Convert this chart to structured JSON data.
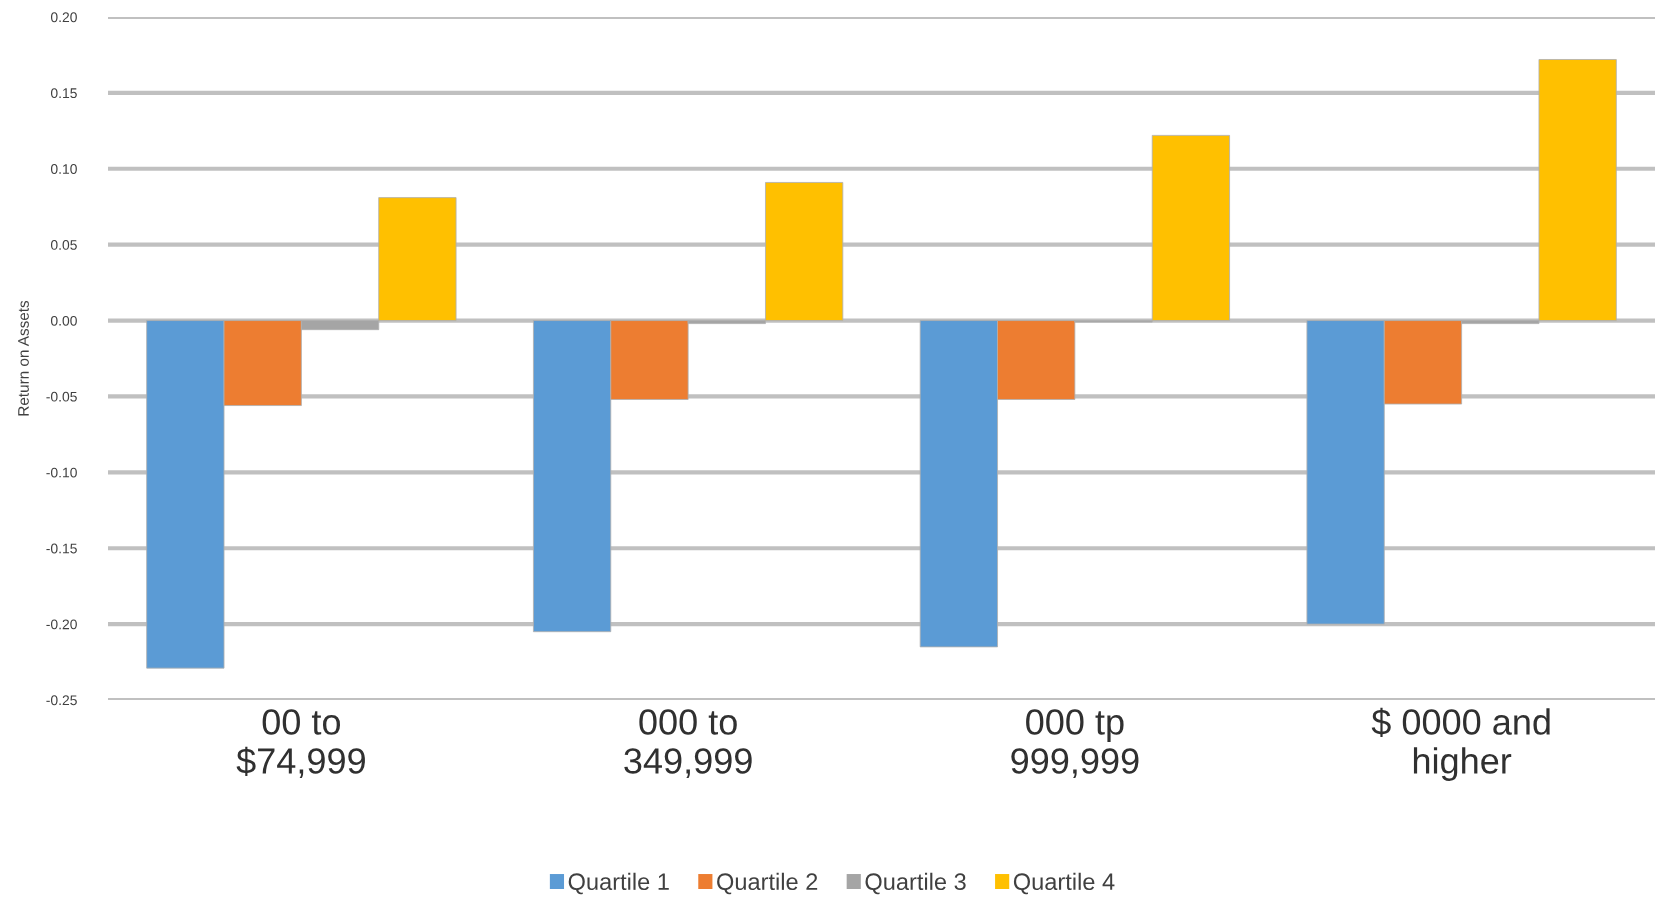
{
  "chart_data": {
    "type": "bar",
    "ylabel": "Return on Assets",
    "categories": [
      "00 to $74,999",
      "000 to 349,999",
      "000 tp 999,999",
      "$ 0000 and higher"
    ],
    "series": [
      {
        "name": "Quartile 1",
        "color": "#5b9bd5",
        "values": [
          -0.229,
          -0.205,
          -0.215,
          -0.2
        ]
      },
      {
        "name": "Quartile 2",
        "color": "#ed7d31",
        "values": [
          -0.056,
          -0.052,
          -0.052,
          -0.055
        ]
      },
      {
        "name": "Quartile 3",
        "color": "#a5a5a5",
        "values": [
          -0.006,
          -0.002,
          -0.001,
          -0.002
        ]
      },
      {
        "name": "Quartile 4",
        "color": "#ffc000",
        "values": [
          0.081,
          0.091,
          0.122,
          0.172
        ]
      }
    ],
    "ylim": [
      -0.25,
      0.2
    ],
    "yticks": [
      {
        "value": -0.25,
        "label": "-0.25"
      },
      {
        "value": -0.2,
        "label": "-0.20"
      },
      {
        "value": -0.15,
        "label": "-0.15"
      },
      {
        "value": -0.1,
        "label": "-0.10"
      },
      {
        "value": -0.05,
        "label": "-0.05"
      },
      {
        "value": 0,
        "label": "0.00"
      },
      {
        "value": 0.05,
        "label": "0.05"
      },
      {
        "value": 0.1,
        "label": "0.10"
      },
      {
        "value": 0.15,
        "label": "0.15"
      },
      {
        "value": 0.2,
        "label": "0.20"
      }
    ],
    "grid": "y",
    "legend": "bottom"
  }
}
